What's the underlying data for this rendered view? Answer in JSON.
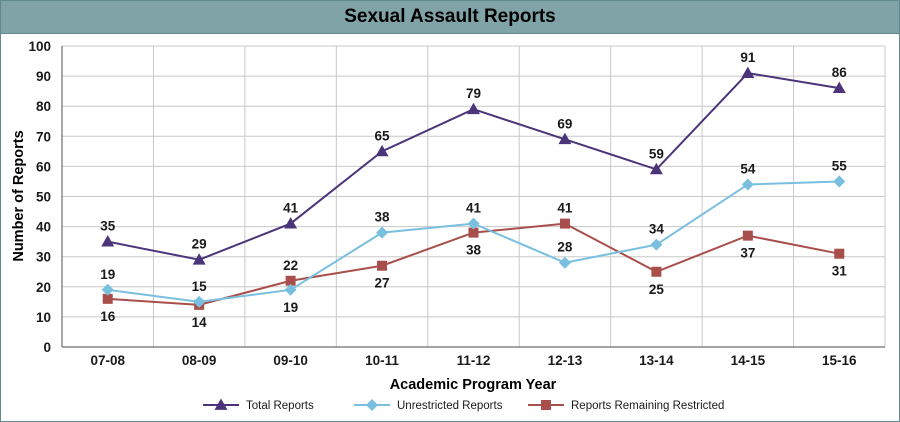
{
  "chart_data": {
    "type": "line",
    "title": "Sexual Assault Reports",
    "xlabel": "Academic Program Year",
    "ylabel": "Number of Reports",
    "categories": [
      "07-08",
      "08-09",
      "09-10",
      "10-11",
      "11-12",
      "12-13",
      "13-14",
      "14-15",
      "15-16"
    ],
    "ylim": [
      0,
      100
    ],
    "yticks": [
      0,
      10,
      20,
      30,
      40,
      50,
      60,
      70,
      80,
      90,
      100
    ],
    "grid": true,
    "legend": "bottom",
    "series": [
      {
        "name": "Total Reports",
        "values": [
          35,
          29,
          41,
          65,
          79,
          69,
          59,
          91,
          86
        ],
        "color": "#4b3479",
        "marker": "triangle",
        "label_position": "above"
      },
      {
        "name": "Unrestricted Reports",
        "values": [
          19,
          15,
          19,
          38,
          41,
          28,
          34,
          54,
          55
        ],
        "color": "#79bfe0",
        "marker": "diamond",
        "label_position": [
          "above",
          "above",
          "below",
          "above",
          "above",
          "above",
          "above",
          "above",
          "above"
        ]
      },
      {
        "name": "Reports Remaining Restricted",
        "values": [
          16,
          14,
          22,
          27,
          38,
          41,
          25,
          37,
          31
        ],
        "color": "#a84e4b",
        "marker": "square",
        "label_position": [
          "below",
          "below",
          "above",
          "below",
          "below",
          "above",
          "below",
          "below",
          "below"
        ]
      }
    ]
  }
}
